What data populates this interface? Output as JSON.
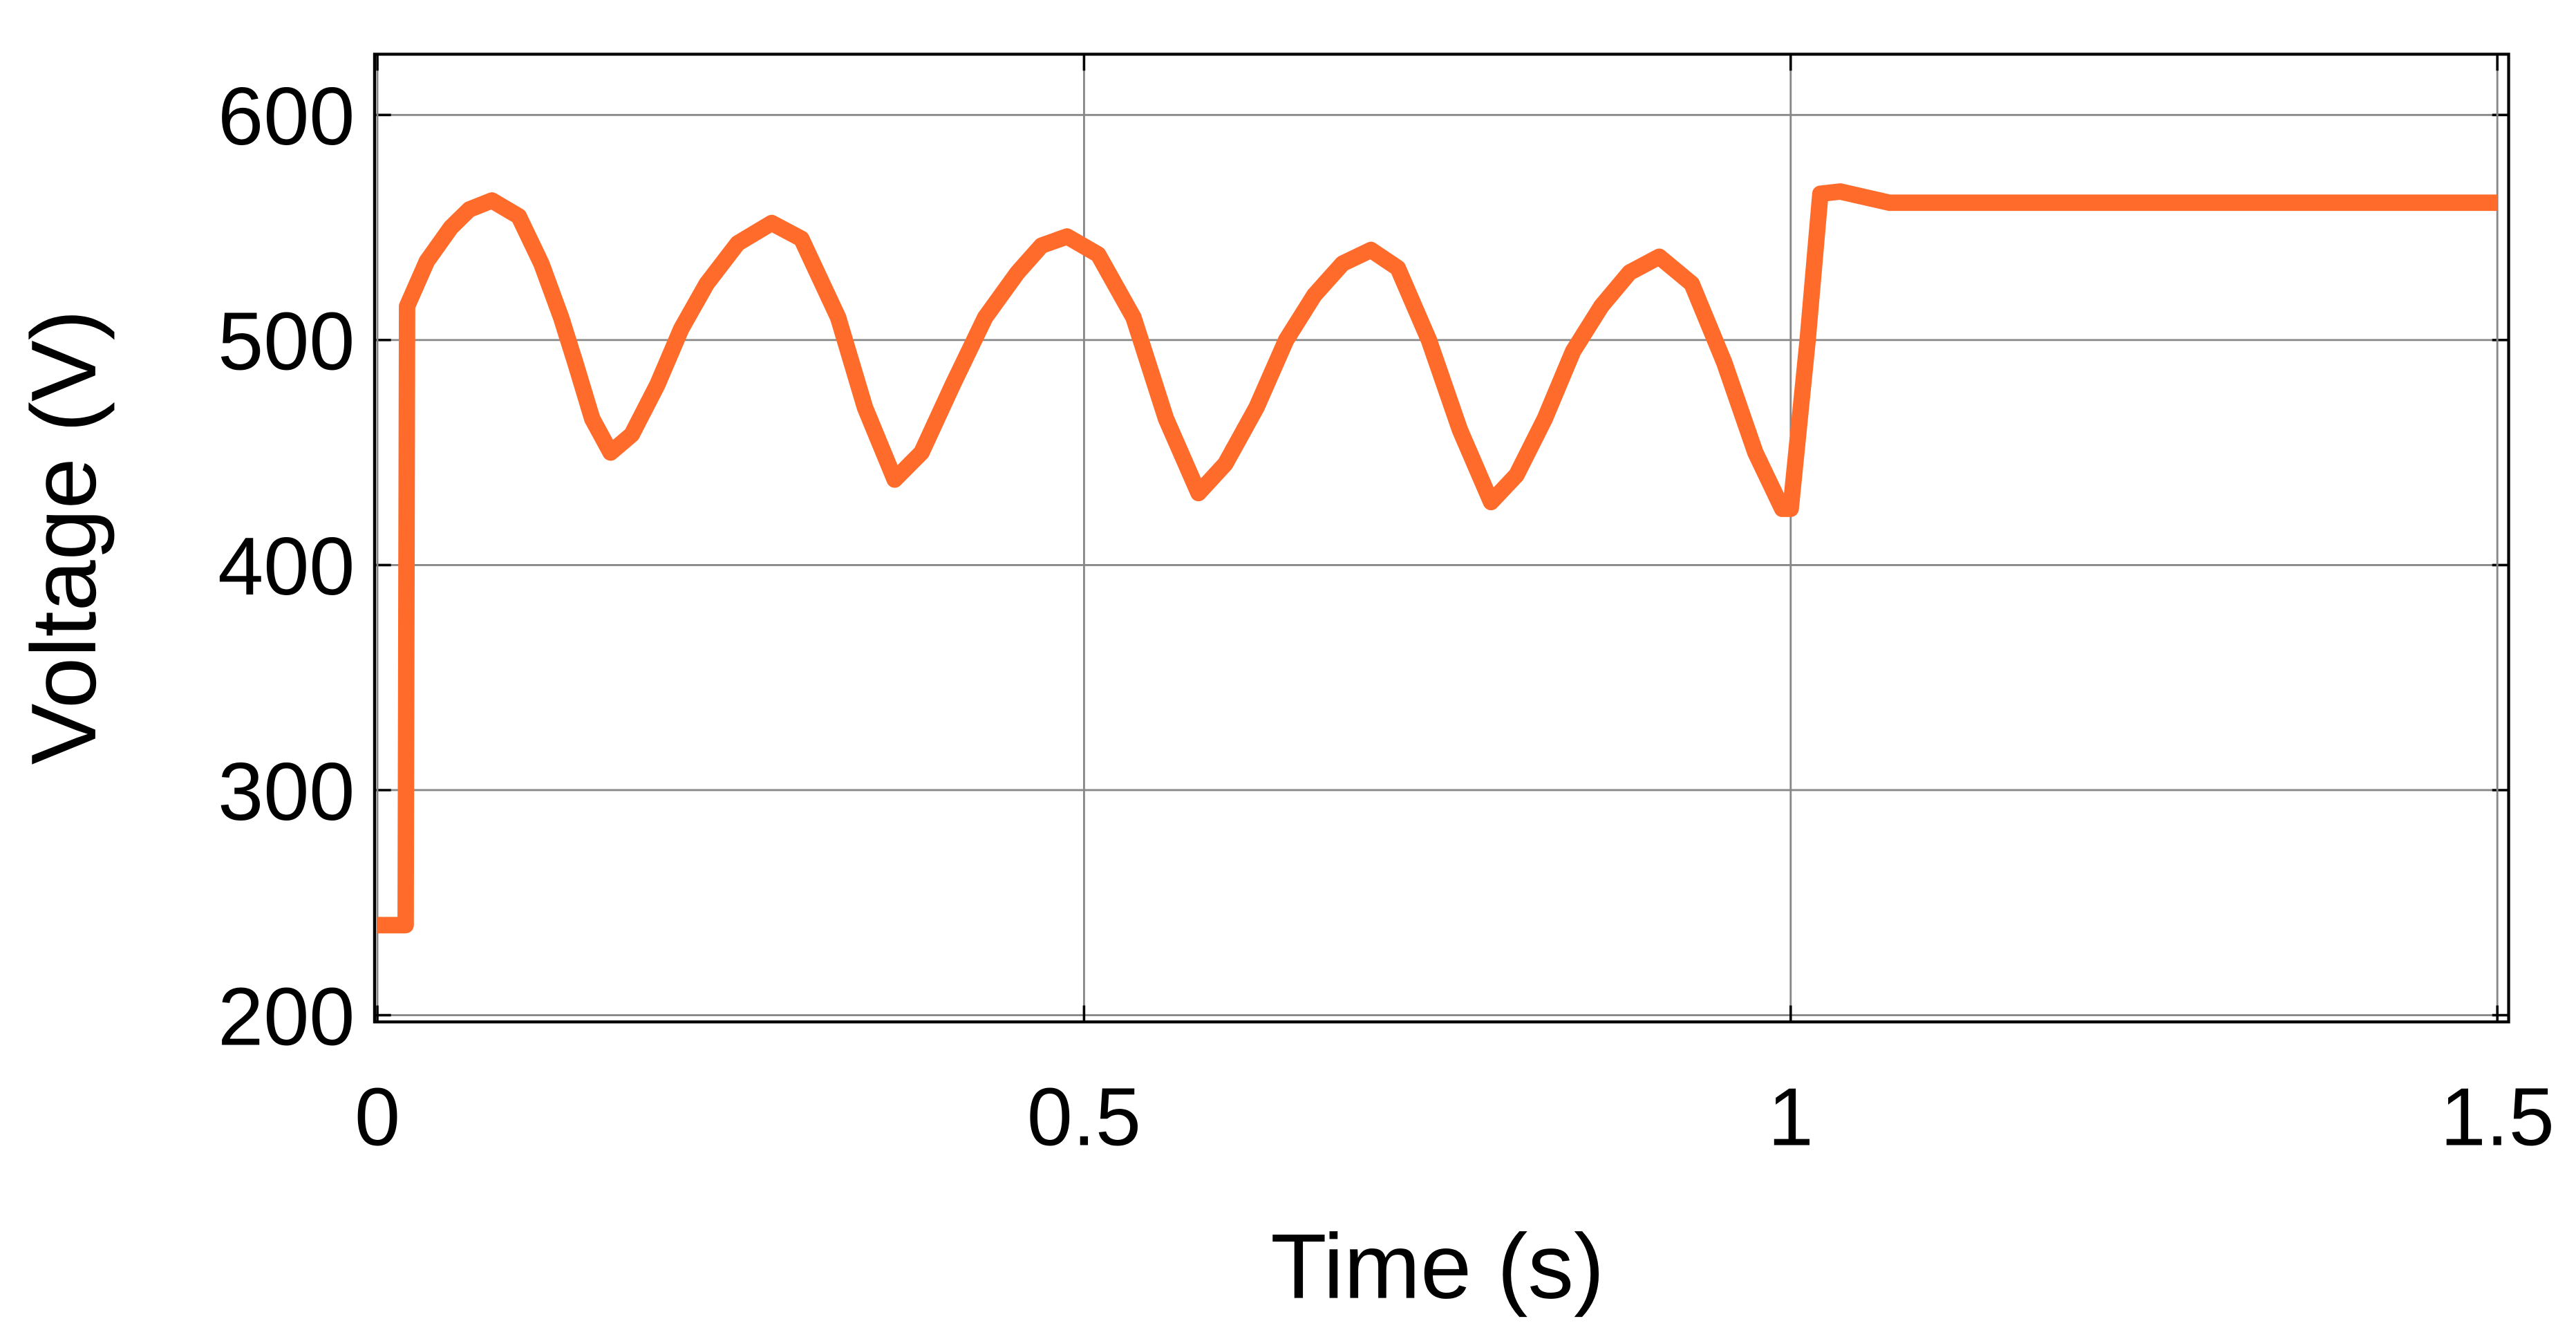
{
  "chart_data": {
    "type": "line",
    "xlabel": "Time (s)",
    "ylabel": "Voltage (V)",
    "xlim": [
      -0.002,
      1.508
    ],
    "ylim": [
      197,
      627
    ],
    "xticks": [
      0,
      0.5,
      1,
      1.5
    ],
    "yticks": [
      200,
      300,
      400,
      500,
      600
    ],
    "grid": true,
    "series": [
      {
        "name": "Voltage",
        "color": "#ff6b2b",
        "x": [
          0,
          0.02,
          0.021,
          0.035,
          0.052,
          0.065,
          0.081,
          0.1,
          0.116,
          0.13,
          0.14,
          0.152,
          0.165,
          0.18,
          0.198,
          0.215,
          0.233,
          0.255,
          0.279,
          0.3,
          0.326,
          0.345,
          0.366,
          0.385,
          0.407,
          0.43,
          0.453,
          0.47,
          0.488,
          0.51,
          0.535,
          0.558,
          0.581,
          0.6,
          0.622,
          0.643,
          0.663,
          0.683,
          0.703,
          0.722,
          0.744,
          0.766,
          0.788,
          0.806,
          0.826,
          0.846,
          0.866,
          0.886,
          0.907,
          0.93,
          0.953,
          0.975,
          0.994,
          1.0,
          1.012,
          1.021,
          1.035,
          1.07,
          1.5
        ],
        "values": [
          240,
          240,
          515,
          535,
          550,
          558,
          562,
          555,
          534,
          510,
          490,
          465,
          450,
          458,
          480,
          505,
          525,
          543,
          552,
          545,
          510,
          470,
          438,
          450,
          480,
          510,
          530,
          542,
          546,
          538,
          510,
          465,
          432,
          445,
          470,
          500,
          520,
          534,
          540,
          532,
          500,
          460,
          428,
          440,
          465,
          495,
          515,
          530,
          537,
          525,
          490,
          450,
          425,
          425,
          500,
          565,
          566,
          561,
          561
        ]
      }
    ]
  }
}
